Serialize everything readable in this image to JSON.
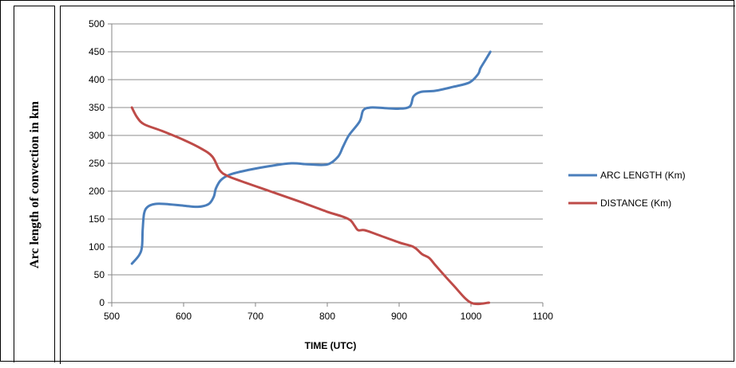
{
  "chart_data": {
    "type": "line",
    "xlabel": "TIME (UTC)",
    "ylabel": "Arc length of convection in km",
    "xlim": [
      500,
      1100
    ],
    "ylim": [
      0,
      500
    ],
    "x_ticks": [
      "500",
      "600",
      "700",
      "800",
      "900",
      "1000",
      "1100"
    ],
    "y_ticks": [
      "0",
      "50",
      "100",
      "150",
      "200",
      "250",
      "300",
      "350",
      "400",
      "450",
      "500"
    ],
    "grid": "horizontal",
    "legend_position": "right",
    "series": [
      {
        "name": "ARC LENGTH (Km)",
        "color": "#4a7ebb",
        "points": [
          [
            528,
            70
          ],
          [
            538,
            85
          ],
          [
            542,
            100
          ],
          [
            543,
            130
          ],
          [
            545,
            160
          ],
          [
            550,
            172
          ],
          [
            560,
            177
          ],
          [
            575,
            177
          ],
          [
            600,
            174
          ],
          [
            620,
            172
          ],
          [
            635,
            177
          ],
          [
            642,
            190
          ],
          [
            645,
            205
          ],
          [
            652,
            220
          ],
          [
            665,
            230
          ],
          [
            690,
            238
          ],
          [
            720,
            245
          ],
          [
            750,
            250
          ],
          [
            775,
            248
          ],
          [
            800,
            248
          ],
          [
            815,
            262
          ],
          [
            822,
            280
          ],
          [
            830,
            300
          ],
          [
            845,
            325
          ],
          [
            850,
            345
          ],
          [
            860,
            350
          ],
          [
            880,
            349
          ],
          [
            900,
            348
          ],
          [
            915,
            352
          ],
          [
            920,
            370
          ],
          [
            930,
            378
          ],
          [
            950,
            380
          ],
          [
            975,
            387
          ],
          [
            998,
            395
          ],
          [
            1010,
            410
          ],
          [
            1013,
            420
          ],
          [
            1020,
            435
          ],
          [
            1027,
            450
          ]
        ]
      },
      {
        "name": "DISTANCE (Km)",
        "color": "#be4b48",
        "points": [
          [
            528,
            350
          ],
          [
            535,
            333
          ],
          [
            545,
            320
          ],
          [
            570,
            308
          ],
          [
            600,
            292
          ],
          [
            625,
            276
          ],
          [
            640,
            262
          ],
          [
            650,
            238
          ],
          [
            660,
            228
          ],
          [
            680,
            218
          ],
          [
            720,
            200
          ],
          [
            760,
            182
          ],
          [
            800,
            163
          ],
          [
            820,
            155
          ],
          [
            832,
            148
          ],
          [
            838,
            138
          ],
          [
            843,
            130
          ],
          [
            852,
            130
          ],
          [
            870,
            122
          ],
          [
            900,
            108
          ],
          [
            920,
            100
          ],
          [
            932,
            87
          ],
          [
            942,
            80
          ],
          [
            952,
            65
          ],
          [
            975,
            32
          ],
          [
            1000,
            0
          ],
          [
            1025,
            0
          ]
        ]
      }
    ]
  }
}
